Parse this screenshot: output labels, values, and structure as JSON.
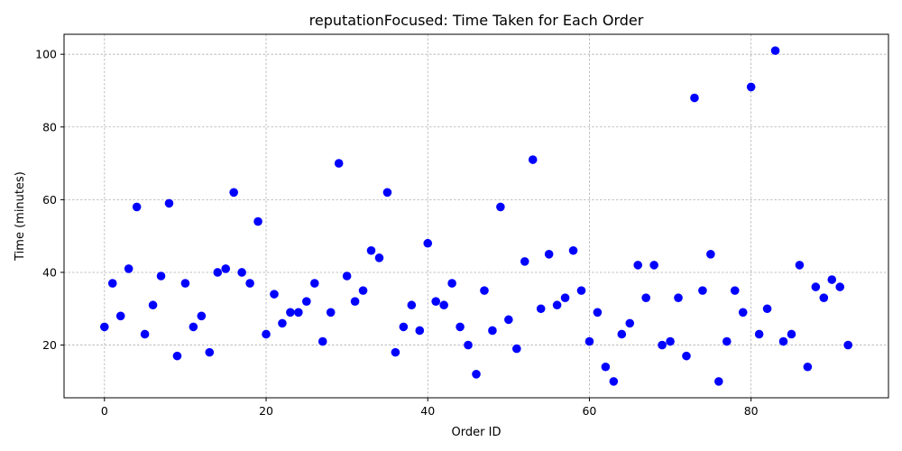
{
  "chart_data": {
    "type": "scatter",
    "title": "reputationFocused: Time Taken for Each Order",
    "xlabel": "Order ID",
    "ylabel": "Time (minutes)",
    "xlim": [
      -5,
      97
    ],
    "ylim": [
      5.5,
      105.5
    ],
    "xticks": [
      0,
      20,
      40,
      60,
      80
    ],
    "yticks": [
      20,
      40,
      60,
      80,
      100
    ],
    "grid": true,
    "marker_color": "#0000ff",
    "series": [
      {
        "x": [
          0,
          1,
          2,
          3,
          4,
          5,
          6,
          7,
          8,
          9,
          10,
          11,
          12,
          13,
          14,
          15,
          16,
          17,
          18,
          19,
          20,
          21,
          22,
          23,
          24,
          25,
          26,
          27,
          28,
          29,
          30,
          31,
          32,
          33,
          34,
          35,
          36,
          37,
          38,
          39,
          40,
          41,
          42,
          43,
          44,
          45,
          46,
          47,
          48,
          49,
          50,
          51,
          52,
          53,
          54,
          55,
          56,
          57,
          58,
          59,
          60,
          61,
          62,
          63,
          64,
          65,
          66,
          67,
          68,
          69,
          70,
          71,
          72,
          73,
          74,
          75,
          76,
          77,
          78,
          79,
          80,
          81,
          82,
          83,
          84,
          85,
          86,
          87,
          88,
          89,
          90,
          91,
          92
        ],
        "y": [
          25,
          37,
          28,
          41,
          58,
          23,
          31,
          39,
          59,
          17,
          37,
          25,
          28,
          18,
          40,
          41,
          62,
          40,
          37,
          54,
          23,
          34,
          26,
          29,
          29,
          32,
          37,
          21,
          29,
          70,
          39,
          32,
          35,
          46,
          44,
          62,
          18,
          25,
          31,
          24,
          48,
          32,
          31,
          37,
          25,
          20,
          12,
          35,
          24,
          58,
          27,
          19,
          43,
          71,
          30,
          45,
          31,
          33,
          46,
          35,
          21,
          29,
          14,
          10,
          23,
          26,
          42,
          33,
          42,
          20,
          21,
          33,
          17,
          88,
          35,
          45,
          10,
          21,
          35,
          29,
          91,
          23,
          30,
          101,
          21,
          23,
          42,
          14,
          36,
          33,
          38,
          36,
          20
        ]
      }
    ]
  }
}
